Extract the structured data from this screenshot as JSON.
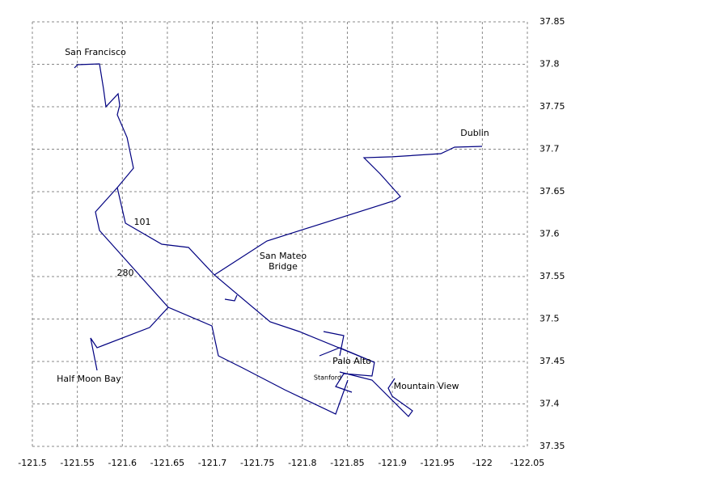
{
  "chart_data": {
    "type": "line",
    "color": "#000080",
    "grid": true,
    "xlim": [
      -121.5,
      -122.05
    ],
    "xticks": [
      -121.5,
      -121.55,
      -121.6,
      -121.65,
      -121.7,
      -121.75,
      -121.8,
      -121.85,
      -121.9,
      -121.95,
      -122,
      -122.05
    ],
    "ylim": [
      37.35,
      37.85
    ],
    "yticks": [
      37.35,
      37.4,
      37.45,
      37.5,
      37.55,
      37.6,
      37.65,
      37.7,
      37.75,
      37.8,
      37.85
    ],
    "series": [
      {
        "x": [
          -121.5467,
          -121.5503,
          -121.5746,
          -121.5791,
          -121.5818,
          -121.5953,
          -121.5971,
          -121.5944,
          -121.6052,
          -121.6123,
          -121.5944,
          -121.6034,
          -121.6438,
          -121.6735,
          -121.7022,
          -121.7642,
          -121.7966,
          -121.8801
        ],
        "y": [
          37.7957,
          37.7995,
          37.8005,
          37.771,
          37.75,
          37.7652,
          37.7519,
          37.7405,
          37.7138,
          37.6776,
          37.6548,
          37.6129,
          37.5881,
          37.5843,
          37.5519,
          37.4967,
          37.4852,
          37.449
        ]
      },
      {
        "x": [
          -121.5944,
          -121.5701,
          -121.5746,
          -121.651,
          -121.6303,
          -121.5719,
          -121.5647,
          -121.5719
        ],
        "y": [
          37.6548,
          37.6262,
          37.6043,
          37.5138,
          37.49,
          37.4662,
          37.4776,
          37.4395
        ]
      },
      {
        "x": [
          -121.651,
          -121.6995,
          -121.7067,
          -121.7337,
          -121.7804,
          -121.837,
          -121.8505
        ],
        "y": [
          37.5138,
          37.4919,
          37.4567,
          37.4424,
          37.4167,
          37.3881,
          37.4281
        ]
      },
      {
        "x": [
          -121.7022,
          -121.7606,
          -121.9026,
          -121.9089,
          -121.8864,
          -121.8685,
          -121.8999,
          -121.9538,
          -121.9691,
          -121.9997
        ],
        "y": [
          37.5519,
          37.5919,
          37.6395,
          37.6443,
          37.671,
          37.69,
          37.691,
          37.6948,
          37.7024,
          37.7033
        ]
      },
      {
        "x": [
          -121.8415,
          -121.8774,
          -121.9179,
          -121.9224,
          -121.8999,
          -121.8954,
          -121.9026
        ],
        "y": [
          37.4376,
          37.4281,
          37.3852,
          37.3919,
          37.409,
          37.4186,
          37.43
        ]
      },
      {
        "x": [
          -121.819,
          -121.8415,
          -121.8801,
          -121.8774,
          -121.846,
          -121.837,
          -121.855
        ],
        "y": [
          37.4567,
          37.4662,
          37.449,
          37.4329,
          37.4357,
          37.4205,
          37.4138
        ]
      },
      {
        "x": [
          -121.8235,
          -121.846,
          -121.8415
        ],
        "y": [
          37.4852,
          37.4805,
          37.4567
        ]
      },
      {
        "x": [
          -121.7139,
          -121.7247,
          -121.7274
        ],
        "y": [
          37.5233,
          37.5214,
          37.5281
        ]
      }
    ],
    "annotations": [
      {
        "text": "San Francisco",
        "x": -121.5701,
        "y": 37.8138
      },
      {
        "text": "Dublin",
        "x": -121.9916,
        "y": 37.7186
      },
      {
        "text": "101",
        "x": -121.6222,
        "y": 37.6138
      },
      {
        "text": "280",
        "x": -121.6034,
        "y": 37.5538
      },
      {
        "text": "San Mateo",
        "x": -121.7786,
        "y": 37.5738
      },
      {
        "text": "Bridge",
        "x": -121.7786,
        "y": 37.5614
      },
      {
        "text": "Palo Alto",
        "x": -121.855,
        "y": 37.45
      },
      {
        "text": "Stanford",
        "x": -121.828,
        "y": 37.431,
        "small": true
      },
      {
        "text": "Mountain View",
        "x": -121.9377,
        "y": 37.4205
      },
      {
        "text": "Half Moon Bay",
        "x": -121.5629,
        "y": 37.4291
      }
    ]
  }
}
